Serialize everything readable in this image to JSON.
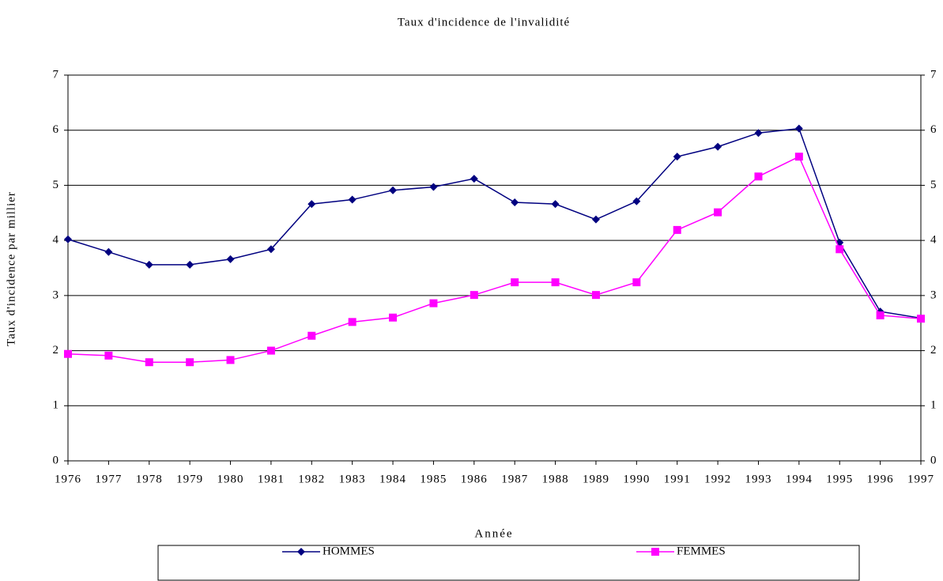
{
  "chart_data": {
    "type": "line",
    "title": "Taux d'incidence de l'invalidité",
    "x_label": "Année",
    "y_label": "Taux d'incidence par millier",
    "categories": [
      "1976",
      "1977",
      "1978",
      "1979",
      "1980",
      "1981",
      "1982",
      "1983",
      "1984",
      "1985",
      "1986",
      "1987",
      "1988",
      "1989",
      "1990",
      "1991",
      "1992",
      "1993",
      "1994",
      "1995",
      "1996",
      "1997"
    ],
    "series": [
      {
        "name": "HOMMES",
        "color": "#000080",
        "marker": "diamond",
        "values": [
          4.02,
          3.79,
          3.56,
          3.56,
          3.66,
          3.84,
          4.66,
          4.74,
          4.91,
          4.97,
          5.12,
          4.69,
          4.66,
          4.38,
          4.71,
          5.52,
          5.7,
          5.95,
          6.03,
          3.96,
          2.71,
          2.59
        ]
      },
      {
        "name": "FEMMES",
        "color": "#ff00ff",
        "marker": "square",
        "values": [
          1.94,
          1.91,
          1.79,
          1.79,
          1.83,
          2.0,
          2.27,
          2.52,
          2.6,
          2.86,
          3.01,
          3.24,
          3.24,
          3.01,
          3.24,
          4.19,
          4.51,
          5.16,
          5.52,
          3.84,
          2.64,
          2.58
        ]
      }
    ],
    "ylim": [
      0,
      7
    ],
    "yticks": [
      0,
      1,
      2,
      3,
      4,
      5,
      6,
      7
    ],
    "y2lim": [
      0,
      7
    ],
    "y2ticks": [
      0,
      1,
      2,
      3,
      4,
      5,
      6,
      7
    ],
    "grid": true,
    "legend": "bottom"
  }
}
